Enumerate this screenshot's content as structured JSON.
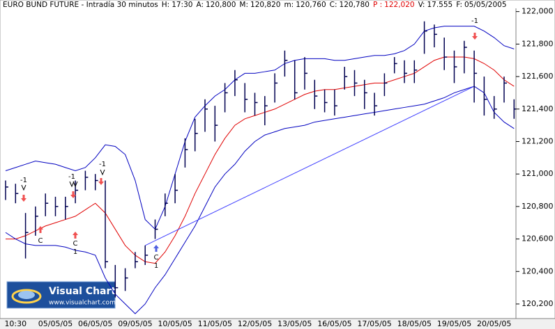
{
  "chart_data": {
    "type": "ohlc",
    "title": "EURO BUND FUTURE - Intradía 30 minutos",
    "info": [
      {
        "label": "H:",
        "value": "17:30"
      },
      {
        "label": "A:",
        "value": "120,800"
      },
      {
        "label": "M:",
        "value": "120,820"
      },
      {
        "label": "m:",
        "value": "120,760"
      },
      {
        "label": "C:",
        "value": "120,780"
      },
      {
        "label": "P :",
        "value": "122,020",
        "color": "#e00000"
      },
      {
        "label": "V:",
        "value": "17.555"
      },
      {
        "label": "F:",
        "value": "05/05/2005"
      }
    ],
    "categories": [
      null,
      "10:30",
      null,
      null,
      null,
      "05/05/05",
      null,
      null,
      null,
      "06/05/05",
      null,
      null,
      null,
      "09/05/05",
      null,
      null,
      null,
      "10/05/05",
      null,
      null,
      null,
      "11/05/05",
      null,
      null,
      null,
      "12/05/05",
      null,
      null,
      null,
      "13/05/05",
      null,
      null,
      null,
      "16/05/05",
      null,
      null,
      null,
      "17/05/05",
      null,
      null,
      null,
      "18/05/05",
      null,
      null,
      null,
      "19/05/05",
      null,
      null,
      null,
      "20/05/05",
      null,
      null
    ],
    "high": [
      120960,
      120940,
      120760,
      120800,
      120880,
      120860,
      120860,
      120960,
      121020,
      121000,
      120960,
      120440,
      120420,
      120520,
      120560,
      120720,
      120880,
      121000,
      121220,
      121340,
      121460,
      121420,
      121560,
      121640,
      121560,
      121500,
      121480,
      121620,
      121760,
      121700,
      121720,
      121580,
      121520,
      121520,
      121660,
      121640,
      121580,
      121500,
      121620,
      121720,
      121700,
      121700,
      121940,
      121920,
      121840,
      121760,
      121820,
      121760,
      121600,
      121480,
      121600,
      121460
    ],
    "low": [
      120840,
      120820,
      120480,
      120620,
      120740,
      120740,
      120720,
      120820,
      120900,
      120900,
      120420,
      120240,
      120280,
      120420,
      120440,
      120600,
      120740,
      120820,
      121040,
      121140,
      121260,
      121200,
      121380,
      121480,
      121380,
      121360,
      121300,
      121440,
      121600,
      121460,
      121520,
      121400,
      121380,
      121360,
      121520,
      121480,
      121400,
      121360,
      121480,
      121620,
      121560,
      121560,
      121740,
      121780,
      121640,
      121560,
      121620,
      121440,
      121360,
      121340,
      121440,
      121340
    ],
    "close": [
      120920,
      120880,
      120640,
      120740,
      120820,
      120800,
      120800,
      120900,
      120980,
      120960,
      120460,
      120300,
      120360,
      120460,
      120500,
      120660,
      120820,
      120900,
      121150,
      121250,
      121400,
      121300,
      121500,
      121580,
      121460,
      121440,
      121420,
      121560,
      121700,
      121500,
      121620,
      121480,
      121440,
      121420,
      121600,
      121560,
      121500,
      121420,
      121560,
      121680,
      121620,
      121640,
      121880,
      121860,
      121720,
      121660,
      121780,
      121620,
      121460,
      121400,
      121560,
      121400
    ],
    "bar_color": "#000050",
    "bands": {
      "upper": {
        "color": "#0000c0",
        "values": [
          121020,
          121040,
          121060,
          121080,
          121070,
          121060,
          121040,
          121020,
          121040,
          121100,
          121180,
          121170,
          121120,
          120960,
          120720,
          120660,
          120800,
          121000,
          121200,
          121350,
          121420,
          121480,
          121520,
          121580,
          121620,
          121620,
          121630,
          121640,
          121680,
          121700,
          121710,
          121710,
          121710,
          121700,
          121700,
          121710,
          121720,
          121730,
          121730,
          121740,
          121760,
          121800,
          121880,
          121900,
          121910,
          121910,
          121910,
          121910,
          121880,
          121840,
          121790,
          121770
        ]
      },
      "middle": {
        "color": "#e00000",
        "values": [
          120600,
          120600,
          120620,
          120650,
          120680,
          120700,
          120720,
          120740,
          120780,
          120820,
          120760,
          120660,
          120560,
          120500,
          120460,
          120450,
          120520,
          120620,
          120740,
          120880,
          121000,
          121120,
          121220,
          121300,
          121340,
          121360,
          121380,
          121400,
          121430,
          121460,
          121490,
          121510,
          121520,
          121520,
          121530,
          121540,
          121550,
          121560,
          121560,
          121580,
          121600,
          121620,
          121660,
          121700,
          121720,
          121720,
          121720,
          121710,
          121680,
          121640,
          121580,
          121540
        ]
      },
      "lower": {
        "color": "#0000c0",
        "values": [
          120640,
          120600,
          120570,
          120560,
          120560,
          120560,
          120550,
          120530,
          120520,
          120500,
          120360,
          120260,
          120200,
          120140,
          120200,
          120300,
          120380,
          120480,
          120580,
          120680,
          120800,
          120920,
          121000,
          121060,
          121140,
          121200,
          121240,
          121260,
          121280,
          121290,
          121300,
          121320,
          121330,
          121340,
          121350,
          121360,
          121370,
          121380,
          121390,
          121400,
          121410,
          121420,
          121430,
          121450,
          121470,
          121500,
          121520,
          121540,
          121500,
          121380,
          121320,
          121280
        ]
      }
    },
    "trendline": {
      "from": 14,
      "to": 47,
      "values": [
        120560,
        121540
      ],
      "color": "#4040ff"
    },
    "ylim": [
      120110,
      122020
    ],
    "yticks": [
      {
        "value": 120200,
        "label": "120,200"
      },
      {
        "value": 120400,
        "label": "120,400"
      },
      {
        "value": 120600,
        "label": "120,600"
      },
      {
        "value": 120800,
        "label": "120,800"
      },
      {
        "value": 121000,
        "label": "121,000"
      },
      {
        "value": 121200,
        "label": "121,200"
      },
      {
        "value": 121400,
        "label": "121,400"
      },
      {
        "value": 121600,
        "label": "121,600"
      },
      {
        "value": 121800,
        "label": "121,800"
      },
      {
        "value": 122000,
        "label": "122,000"
      }
    ],
    "annotations": [
      "-1",
      "C",
      "-1",
      "C",
      "1",
      "-1",
      "C",
      "1",
      "-1"
    ],
    "watermark": {
      "title": "Visual Chart",
      "url": "www.visualchart.com"
    }
  }
}
